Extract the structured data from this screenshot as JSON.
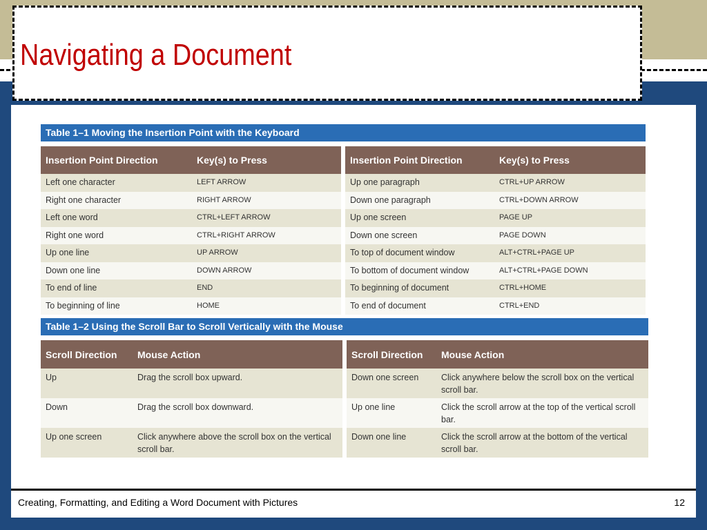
{
  "title": "Navigating a Document",
  "table1": {
    "caption": "Table 1–1 Moving the Insertion Point with the Keyboard",
    "headers": [
      "Insertion Point Direction",
      "Key(s) to Press"
    ],
    "left": [
      [
        "Left one character",
        "LEFT ARROW"
      ],
      [
        "Right one character",
        "RIGHT ARROW"
      ],
      [
        "Left one word",
        "CTRL+LEFT ARROW"
      ],
      [
        "Right one word",
        "CTRL+RIGHT ARROW"
      ],
      [
        "Up one line",
        "UP ARROW"
      ],
      [
        "Down one line",
        "DOWN ARROW"
      ],
      [
        "To end of line",
        "END"
      ],
      [
        "To beginning of line",
        "HOME"
      ]
    ],
    "right": [
      [
        "Up one paragraph",
        "CTRL+UP ARROW"
      ],
      [
        "Down one paragraph",
        "CTRL+DOWN ARROW"
      ],
      [
        "Up one screen",
        "PAGE UP"
      ],
      [
        "Down one screen",
        "PAGE DOWN"
      ],
      [
        "To top of document window",
        "ALT+CTRL+PAGE UP"
      ],
      [
        "To bottom of document window",
        "ALT+CTRL+PAGE DOWN"
      ],
      [
        "To beginning of document",
        "CTRL+HOME"
      ],
      [
        "To end of document",
        "CTRL+END"
      ]
    ]
  },
  "table2": {
    "caption": "Table 1–2 Using the Scroll Bar to Scroll Vertically with the Mouse",
    "headers": [
      "Scroll Direction",
      "Mouse Action"
    ],
    "left": [
      [
        "Up",
        "Drag the scroll box upward."
      ],
      [
        "Down",
        "Drag the scroll box downward."
      ],
      [
        "Up one screen",
        "Click anywhere above the scroll box on the vertical scroll bar."
      ]
    ],
    "right": [
      [
        "Down one screen",
        "Click anywhere below the scroll box on the vertical scroll bar."
      ],
      [
        "Up one line",
        "Click the scroll arrow at the top of the vertical scroll bar."
      ],
      [
        "Down one line",
        "Click the scroll arrow at the bottom of the vertical scroll bar."
      ]
    ]
  },
  "footer": {
    "text": "Creating, Formatting, and Editing a Word Document with Pictures",
    "page": "12"
  },
  "colors": {
    "title": "#c00000",
    "caption_bar": "#2a6db5",
    "header": "#7f6257",
    "background": "#1f497d",
    "tan": "#c4bc96"
  }
}
